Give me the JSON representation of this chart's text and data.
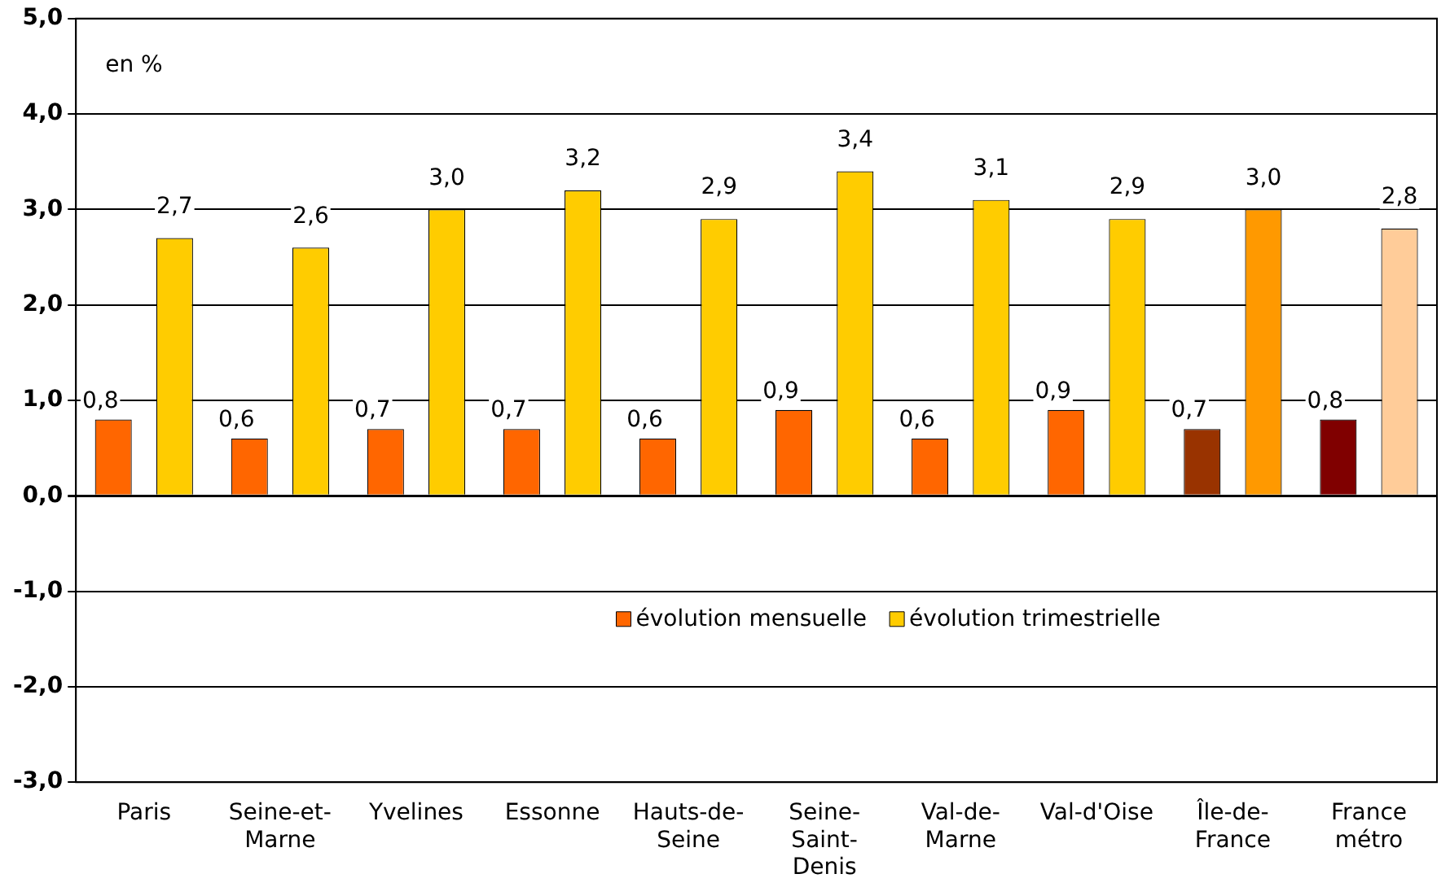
{
  "chart_data": {
    "type": "bar",
    "categories": [
      "Paris",
      "Seine-et-Marne",
      "Yvelines",
      "Essonne",
      "Hauts-de-Seine",
      "Seine-Saint-Denis",
      "Val-de-Marne",
      "Val-d'Oise",
      "Île-de-France",
      "France métro"
    ],
    "series": [
      {
        "name": "évolution mensuelle",
        "color": "#ff6600",
        "colors": [
          "#ff6600",
          "#ff6600",
          "#ff6600",
          "#ff6600",
          "#ff6600",
          "#ff6600",
          "#ff6600",
          "#ff6600",
          "#993300",
          "#800000"
        ],
        "values": [
          0.8,
          0.6,
          0.7,
          0.7,
          0.6,
          0.9,
          0.6,
          0.9,
          0.7,
          0.8
        ],
        "value_labels": [
          "0,8",
          "0,6",
          "0,7",
          "0,7",
          "0,6",
          "0,9",
          "0,6",
          "0,9",
          "0,7",
          "0,8"
        ]
      },
      {
        "name": "évolution trimestrielle",
        "color": "#ffcc00",
        "colors": [
          "#ffcc00",
          "#ffcc00",
          "#ffcc00",
          "#ffcc00",
          "#ffcc00",
          "#ffcc00",
          "#ffcc00",
          "#ffcc00",
          "#ff9900",
          "#ffcc99"
        ],
        "values": [
          2.7,
          2.6,
          3.0,
          3.2,
          2.9,
          3.4,
          3.1,
          2.9,
          3.0,
          2.8
        ],
        "value_labels": [
          "2,7",
          "2,6",
          "3,0",
          "3,2",
          "2,9",
          "3,4",
          "3,1",
          "2,9",
          "3,0",
          "2,8"
        ]
      }
    ],
    "ylim": [
      -3,
      5
    ],
    "yticks": [
      {
        "value": -3,
        "label": "-3,0"
      },
      {
        "value": -2,
        "label": "-2,0"
      },
      {
        "value": -1,
        "label": "-1,0"
      },
      {
        "value": 0,
        "label": "0,0"
      },
      {
        "value": 1,
        "label": "1,0"
      },
      {
        "value": 2,
        "label": "2,0"
      },
      {
        "value": 3,
        "label": "3,0"
      },
      {
        "value": 4,
        "label": "4,0"
      },
      {
        "value": 5,
        "label": "5,0"
      }
    ],
    "grid": "y",
    "legend": "bottom",
    "annotations": [
      "en %"
    ]
  }
}
